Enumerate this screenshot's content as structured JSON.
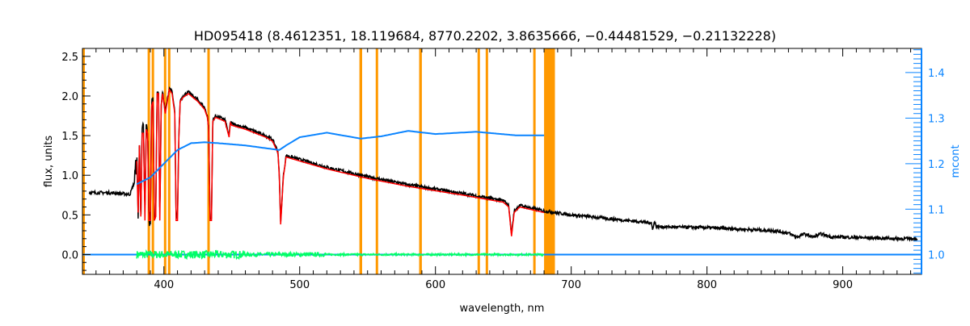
{
  "chart_data": {
    "type": "line",
    "title": "HD095418    (8.4612351, 18.119684, 8770.2202, 3.8635666, −0.44481529, −0.21132228)",
    "xlabel": "wavelength, nm",
    "ylabel": "flux, units",
    "y2label": "mcont",
    "xlim": [
      340,
      958
    ],
    "ylim": [
      -0.25,
      2.6
    ],
    "y2lim": [
      0.957,
      1.453
    ],
    "xticks": [
      "400",
      "500",
      "600",
      "700",
      "800",
      "900"
    ],
    "yticks": [
      "0.0",
      "0.5",
      "1.0",
      "1.5",
      "2.0",
      "2.5"
    ],
    "y2ticks": [
      "1.0",
      "1.1",
      "1.2",
      "1.3",
      "1.4"
    ],
    "colors": {
      "observed": "#000000",
      "model": "#ff0000",
      "residual": "#00ff66",
      "mcont": "#0a84ff",
      "mask": "#ff9900",
      "axis2": "#0a84ff"
    },
    "series": [
      {
        "name": "observed flux",
        "x": [
          345,
          360,
          375,
          378,
          380,
          381,
          382,
          383,
          384,
          385,
          386,
          387,
          388,
          389,
          390,
          391,
          392,
          393,
          394,
          395,
          396,
          397,
          398,
          399,
          401,
          404,
          406,
          408,
          409,
          410,
          411,
          412,
          414,
          418,
          425,
          430,
          432,
          433,
          434,
          435,
          436,
          438,
          445,
          448,
          449,
          450,
          460,
          475,
          480,
          484,
          485,
          486,
          487,
          488,
          490,
          500,
          520,
          550,
          580,
          620,
          650,
          654,
          656,
          658,
          662,
          680,
          700,
          759,
          760,
          761,
          763,
          800,
          850,
          860,
          866,
          872,
          878,
          884,
          892,
          900,
          920,
          940,
          955
        ],
        "y": [
          0.78,
          0.78,
          0.76,
          0.9,
          1.2,
          0.55,
          1.4,
          0.5,
          1.55,
          1.55,
          0.45,
          1.6,
          1.55,
          0.45,
          0.45,
          1.9,
          1.95,
          0.45,
          0.5,
          2.05,
          2.05,
          0.45,
          1.9,
          2.05,
          1.8,
          2.1,
          2.05,
          1.8,
          0.45,
          0.45,
          1.5,
          1.95,
          2.0,
          2.05,
          1.95,
          1.85,
          1.75,
          1.6,
          0.45,
          0.45,
          1.7,
          1.75,
          1.7,
          1.5,
          1.68,
          1.65,
          1.6,
          1.5,
          1.45,
          1.3,
          1.0,
          0.4,
          0.7,
          1.0,
          1.25,
          1.2,
          1.1,
          0.98,
          0.88,
          0.77,
          0.68,
          0.62,
          0.25,
          0.55,
          0.62,
          0.55,
          0.5,
          0.4,
          0.3,
          0.42,
          0.35,
          0.34,
          0.3,
          0.27,
          0.22,
          0.26,
          0.22,
          0.26,
          0.22,
          0.22,
          0.21,
          0.2,
          0.2
        ]
      },
      {
        "name": "model",
        "x_range": [
          380,
          680
        ]
      },
      {
        "name": "residual",
        "x_range": [
          380,
          680
        ],
        "center": 0.0
      },
      {
        "name": "mcont",
        "axis": "right",
        "x": [
          380,
          390,
          400,
          410,
          420,
          430,
          440,
          460,
          480,
          485,
          490,
          500,
          520,
          545,
          560,
          580,
          600,
          630,
          660,
          680
        ],
        "y": [
          1.155,
          1.17,
          1.2,
          1.23,
          1.245,
          1.247,
          1.245,
          1.24,
          1.232,
          1.23,
          1.24,
          1.258,
          1.268,
          1.255,
          1.26,
          1.272,
          1.265,
          1.27,
          1.262,
          1.262
        ]
      }
    ],
    "mask_regions": [
      [
        388,
        389
      ],
      [
        391,
        392
      ],
      [
        400,
        401
      ],
      [
        403,
        404
      ],
      [
        432,
        433
      ],
      [
        544,
        546
      ],
      [
        556,
        557.5
      ],
      [
        588,
        590
      ],
      [
        631,
        632
      ],
      [
        637,
        638
      ],
      [
        672,
        673
      ],
      [
        680,
        688
      ]
    ]
  }
}
